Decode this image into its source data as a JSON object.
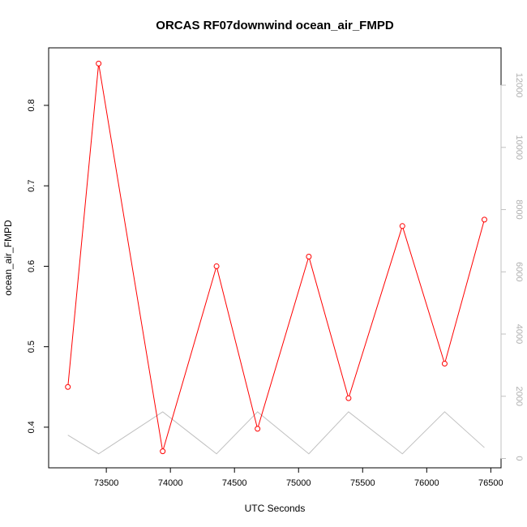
{
  "chart_data": {
    "type": "line",
    "title": "ORCAS RF07downwind ocean_air_FMPD",
    "xlabel": "UTC Seconds",
    "ylabel": "ocean_air_FMPD",
    "xlim": [
      73050,
      76580
    ],
    "ylim": [
      0.3495,
      0.8715
    ],
    "y2lim": [
      -300,
      13200
    ],
    "x_ticks": [
      73500,
      74000,
      74500,
      75000,
      75500,
      76000,
      76500
    ],
    "x_tick_labels": [
      "73500",
      "74000",
      "74500",
      "75000",
      "75500",
      "76000",
      "76500"
    ],
    "y_ticks": [
      0.4,
      0.5,
      0.6,
      0.7,
      0.8
    ],
    "y_tick_labels": [
      "0.4",
      "0.5",
      "0.6",
      "0.7",
      "0.8"
    ],
    "y2_ticks": [
      0,
      2000,
      4000,
      6000,
      8000,
      10000,
      12000
    ],
    "y2_tick_labels": [
      "0",
      "2000",
      "4000",
      "6000",
      "8000",
      "10000",
      "12000"
    ],
    "colors": {
      "primary": "#ff0000",
      "secondary": "#c0c0c0"
    },
    "grid": false,
    "series": [
      {
        "axis": "left",
        "style": "line+points",
        "x": [
          73200,
          73440,
          73940,
          74360,
          74680,
          75080,
          75390,
          75810,
          76140,
          76450
        ],
        "y": [
          0.45,
          0.852,
          0.37,
          0.6,
          0.398,
          0.612,
          0.436,
          0.65,
          0.479,
          0.658
        ]
      },
      {
        "axis": "right",
        "style": "line",
        "x": [
          73200,
          73440,
          73940,
          74360,
          74680,
          75080,
          75390,
          75810,
          76140,
          76450
        ],
        "y": [
          750,
          150,
          1500,
          150,
          1500,
          150,
          1500,
          150,
          1500,
          350
        ]
      }
    ]
  }
}
